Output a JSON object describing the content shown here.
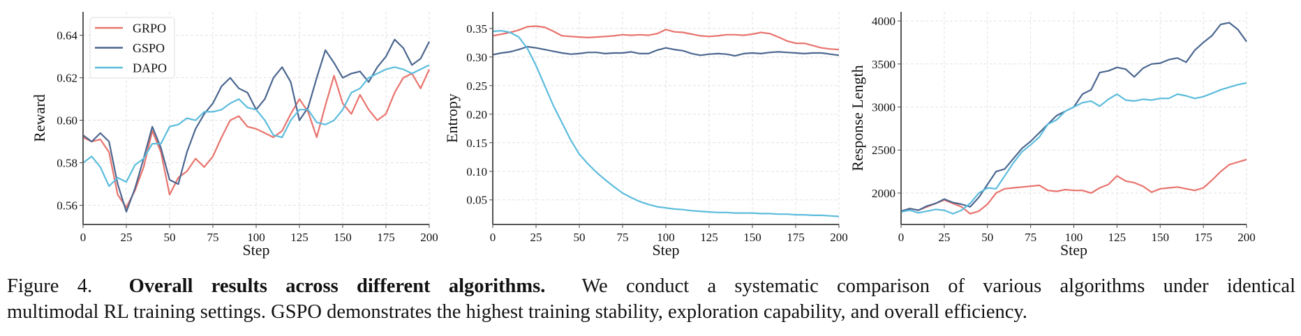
{
  "colors": {
    "GRPO": "#e8736d",
    "GSPO": "#4b668f",
    "DAPO": "#5bbcdc"
  },
  "legend": [
    "GRPO",
    "GSPO",
    "DAPO"
  ],
  "chart_data": [
    {
      "type": "line",
      "title": "",
      "xlabel": "Step",
      "ylabel": "Reward",
      "xlim": [
        0,
        200
      ],
      "ylim": [
        0.551,
        0.651
      ],
      "grid": true,
      "legend_position": "top-left",
      "xticks": [
        0,
        25,
        50,
        75,
        100,
        125,
        150,
        175,
        200
      ],
      "yticks": [
        0.56,
        0.58,
        0.6,
        0.62,
        0.64
      ],
      "ytick_labels": [
        "0.56",
        "0.58",
        "0.60",
        "0.62",
        "0.64"
      ],
      "x": [
        0,
        5,
        10,
        15,
        20,
        25,
        30,
        35,
        40,
        45,
        50,
        55,
        60,
        65,
        70,
        75,
        80,
        85,
        90,
        95,
        100,
        105,
        110,
        115,
        120,
        125,
        130,
        135,
        140,
        145,
        150,
        155,
        160,
        165,
        170,
        175,
        180,
        185,
        190,
        195,
        200
      ],
      "series": [
        {
          "name": "GRPO",
          "values": [
            0.592,
            0.59,
            0.591,
            0.585,
            0.565,
            0.559,
            0.567,
            0.578,
            0.595,
            0.585,
            0.565,
            0.573,
            0.576,
            0.582,
            0.578,
            0.583,
            0.592,
            0.6,
            0.602,
            0.597,
            0.596,
            0.594,
            0.592,
            0.595,
            0.603,
            0.61,
            0.604,
            0.592,
            0.607,
            0.621,
            0.608,
            0.603,
            0.612,
            0.605,
            0.6,
            0.603,
            0.613,
            0.62,
            0.622,
            0.615,
            0.624
          ]
        },
        {
          "name": "GSPO",
          "values": [
            0.593,
            0.59,
            0.594,
            0.59,
            0.57,
            0.557,
            0.568,
            0.582,
            0.597,
            0.587,
            0.572,
            0.57,
            0.585,
            0.596,
            0.603,
            0.608,
            0.616,
            0.62,
            0.615,
            0.613,
            0.605,
            0.61,
            0.62,
            0.625,
            0.618,
            0.6,
            0.606,
            0.62,
            0.633,
            0.627,
            0.62,
            0.622,
            0.623,
            0.618,
            0.625,
            0.63,
            0.638,
            0.634,
            0.626,
            0.629,
            0.637
          ]
        },
        {
          "name": "DAPO",
          "values": [
            0.58,
            0.583,
            0.578,
            0.569,
            0.573,
            0.571,
            0.579,
            0.582,
            0.589,
            0.589,
            0.597,
            0.598,
            0.601,
            0.6,
            0.604,
            0.604,
            0.605,
            0.608,
            0.61,
            0.606,
            0.605,
            0.6,
            0.593,
            0.592,
            0.6,
            0.605,
            0.605,
            0.599,
            0.598,
            0.6,
            0.605,
            0.613,
            0.615,
            0.62,
            0.622,
            0.624,
            0.625,
            0.624,
            0.622,
            0.624,
            0.626
          ]
        }
      ]
    },
    {
      "type": "line",
      "title": "",
      "xlabel": "Step",
      "ylabel": "Entropy",
      "xlim": [
        0,
        200
      ],
      "ylim": [
        0.007,
        0.379
      ],
      "grid": true,
      "xticks": [
        0,
        25,
        50,
        75,
        100,
        125,
        150,
        175,
        200
      ],
      "yticks": [
        0.05,
        0.1,
        0.15,
        0.2,
        0.25,
        0.3,
        0.35
      ],
      "ytick_labels": [
        "0.05",
        "0.10",
        "0.15",
        "0.20",
        "0.25",
        "0.30",
        "0.35"
      ],
      "x": [
        0,
        5,
        10,
        15,
        20,
        25,
        30,
        35,
        40,
        45,
        50,
        55,
        60,
        65,
        70,
        75,
        80,
        85,
        90,
        95,
        100,
        105,
        110,
        115,
        120,
        125,
        130,
        135,
        140,
        145,
        150,
        155,
        160,
        165,
        170,
        175,
        180,
        185,
        190,
        195,
        200
      ],
      "series": [
        {
          "name": "GRPO",
          "values": [
            0.337,
            0.34,
            0.343,
            0.347,
            0.353,
            0.354,
            0.352,
            0.345,
            0.337,
            0.336,
            0.335,
            0.334,
            0.335,
            0.336,
            0.337,
            0.339,
            0.338,
            0.339,
            0.338,
            0.341,
            0.348,
            0.344,
            0.343,
            0.34,
            0.337,
            0.336,
            0.337,
            0.339,
            0.339,
            0.338,
            0.34,
            0.343,
            0.341,
            0.335,
            0.328,
            0.324,
            0.324,
            0.32,
            0.316,
            0.314,
            0.313
          ]
        },
        {
          "name": "GSPO",
          "values": [
            0.304,
            0.307,
            0.309,
            0.313,
            0.318,
            0.316,
            0.313,
            0.31,
            0.307,
            0.305,
            0.306,
            0.308,
            0.308,
            0.306,
            0.307,
            0.307,
            0.309,
            0.306,
            0.306,
            0.312,
            0.316,
            0.313,
            0.311,
            0.306,
            0.303,
            0.305,
            0.306,
            0.305,
            0.302,
            0.306,
            0.307,
            0.306,
            0.308,
            0.309,
            0.308,
            0.307,
            0.306,
            0.307,
            0.307,
            0.305,
            0.303
          ]
        },
        {
          "name": "DAPO",
          "values": [
            0.345,
            0.346,
            0.343,
            0.335,
            0.315,
            0.285,
            0.25,
            0.215,
            0.185,
            0.155,
            0.13,
            0.113,
            0.098,
            0.085,
            0.073,
            0.062,
            0.054,
            0.047,
            0.042,
            0.038,
            0.036,
            0.034,
            0.033,
            0.031,
            0.03,
            0.029,
            0.028,
            0.028,
            0.027,
            0.027,
            0.027,
            0.026,
            0.026,
            0.025,
            0.025,
            0.024,
            0.024,
            0.023,
            0.023,
            0.022,
            0.021
          ]
        }
      ]
    },
    {
      "type": "line",
      "title": "",
      "xlabel": "Step",
      "ylabel": "Response Length",
      "xlim": [
        0,
        200
      ],
      "ylim": [
        1635,
        4106
      ],
      "grid": true,
      "xticks": [
        0,
        25,
        50,
        75,
        100,
        125,
        150,
        175,
        200
      ],
      "yticks": [
        2000,
        2500,
        3000,
        3500,
        4000
      ],
      "ytick_labels": [
        "2000",
        "2500",
        "3000",
        "3500",
        "4000"
      ],
      "x": [
        0,
        5,
        10,
        15,
        20,
        25,
        30,
        35,
        40,
        45,
        50,
        55,
        60,
        65,
        70,
        75,
        80,
        85,
        90,
        95,
        100,
        105,
        110,
        115,
        120,
        125,
        130,
        135,
        140,
        145,
        150,
        155,
        160,
        165,
        170,
        175,
        180,
        185,
        190,
        195,
        200
      ],
      "series": [
        {
          "name": "GRPO",
          "values": [
            1780,
            1820,
            1800,
            1840,
            1880,
            1920,
            1880,
            1840,
            1760,
            1790,
            1870,
            2000,
            2050,
            2060,
            2070,
            2080,
            2090,
            2030,
            2020,
            2040,
            2030,
            2030,
            2000,
            2060,
            2100,
            2200,
            2140,
            2120,
            2080,
            2010,
            2050,
            2060,
            2070,
            2050,
            2030,
            2060,
            2150,
            2250,
            2330,
            2360,
            2390
          ]
        },
        {
          "name": "GSPO",
          "values": [
            1790,
            1820,
            1800,
            1850,
            1880,
            1930,
            1890,
            1870,
            1840,
            1950,
            2100,
            2250,
            2280,
            2400,
            2520,
            2600,
            2700,
            2800,
            2900,
            2950,
            3000,
            3150,
            3200,
            3400,
            3420,
            3460,
            3440,
            3350,
            3450,
            3500,
            3510,
            3550,
            3570,
            3520,
            3660,
            3750,
            3830,
            3960,
            3980,
            3900,
            3760
          ]
        },
        {
          "name": "DAPO",
          "values": [
            1780,
            1800,
            1770,
            1790,
            1810,
            1800,
            1760,
            1800,
            1880,
            2000,
            2060,
            2050,
            2200,
            2350,
            2480,
            2560,
            2650,
            2800,
            2850,
            2950,
            3000,
            3050,
            3070,
            3010,
            3090,
            3150,
            3080,
            3070,
            3090,
            3080,
            3100,
            3100,
            3150,
            3130,
            3100,
            3120,
            3160,
            3200,
            3230,
            3260,
            3280
          ]
        }
      ]
    }
  ],
  "caption": {
    "label": "Figure 4.",
    "bold": "Overall results across different algorithms.",
    "line1_rest": "We conduct a systematic comparison of various algorithms under identical",
    "line2": "multimodal RL training settings. GSPO demonstrates the highest training stability, exploration capability, and overall efficiency."
  }
}
